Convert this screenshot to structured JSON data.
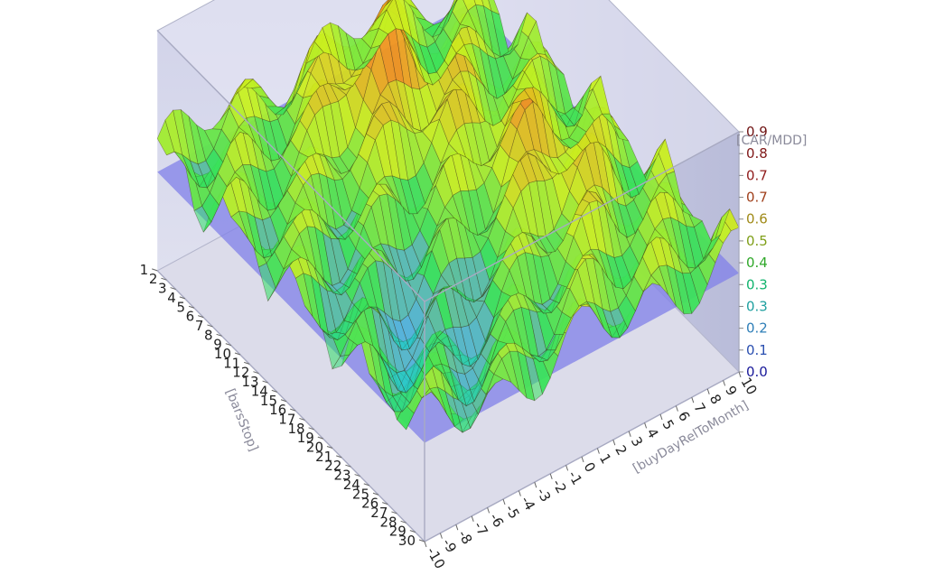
{
  "chart_data": {
    "type": "surface3d",
    "z_title": "[CAR/MDD]",
    "x_title": "[buyDayRelToMonth]",
    "y_title": "[barsStop]",
    "x_ticks": [
      "-10",
      "-9",
      "-8",
      "-7",
      "-6",
      "-5",
      "-4",
      "-3",
      "-2",
      "-1",
      "0",
      "1",
      "2",
      "3",
      "4",
      "5",
      "6",
      "7",
      "8",
      "9",
      "10"
    ],
    "y_ticks": [
      "1",
      "2",
      "3",
      "4",
      "5",
      "6",
      "7",
      "8",
      "9",
      "10",
      "11",
      "12",
      "13",
      "14",
      "15",
      "16",
      "17",
      "18",
      "19",
      "20",
      "21",
      "22",
      "23",
      "24",
      "25",
      "26",
      "27",
      "28",
      "29",
      "30"
    ],
    "z_ticks": [
      {
        "label": "0.0",
        "color": "#1a1a9a"
      },
      {
        "label": "0.1",
        "color": "#2a4fb0"
      },
      {
        "label": "0.2",
        "color": "#2f7fb8"
      },
      {
        "label": "0.3",
        "color": "#1fa0a0"
      },
      {
        "label": "0.3",
        "color": "#12b46e"
      },
      {
        "label": "0.4",
        "color": "#30a82a"
      },
      {
        "label": "0.5",
        "color": "#7f9f18"
      },
      {
        "label": "0.6",
        "color": "#a08a18"
      },
      {
        "label": "0.7",
        "color": "#a0401c"
      },
      {
        "label": "0.7",
        "color": "#901c1c"
      },
      {
        "label": "0.8",
        "color": "#801818"
      },
      {
        "label": "0.9",
        "color": "#701414"
      }
    ],
    "z_range": [
      0,
      0.9
    ],
    "x_range": [
      -10,
      10
    ],
    "y_range": [
      1,
      30
    ],
    "reference_plane_z": 0.37,
    "colormap": [
      "#2030d0",
      "#20c8e0",
      "#30e060",
      "#c8f020",
      "#f0a020",
      "#e82010"
    ]
  }
}
